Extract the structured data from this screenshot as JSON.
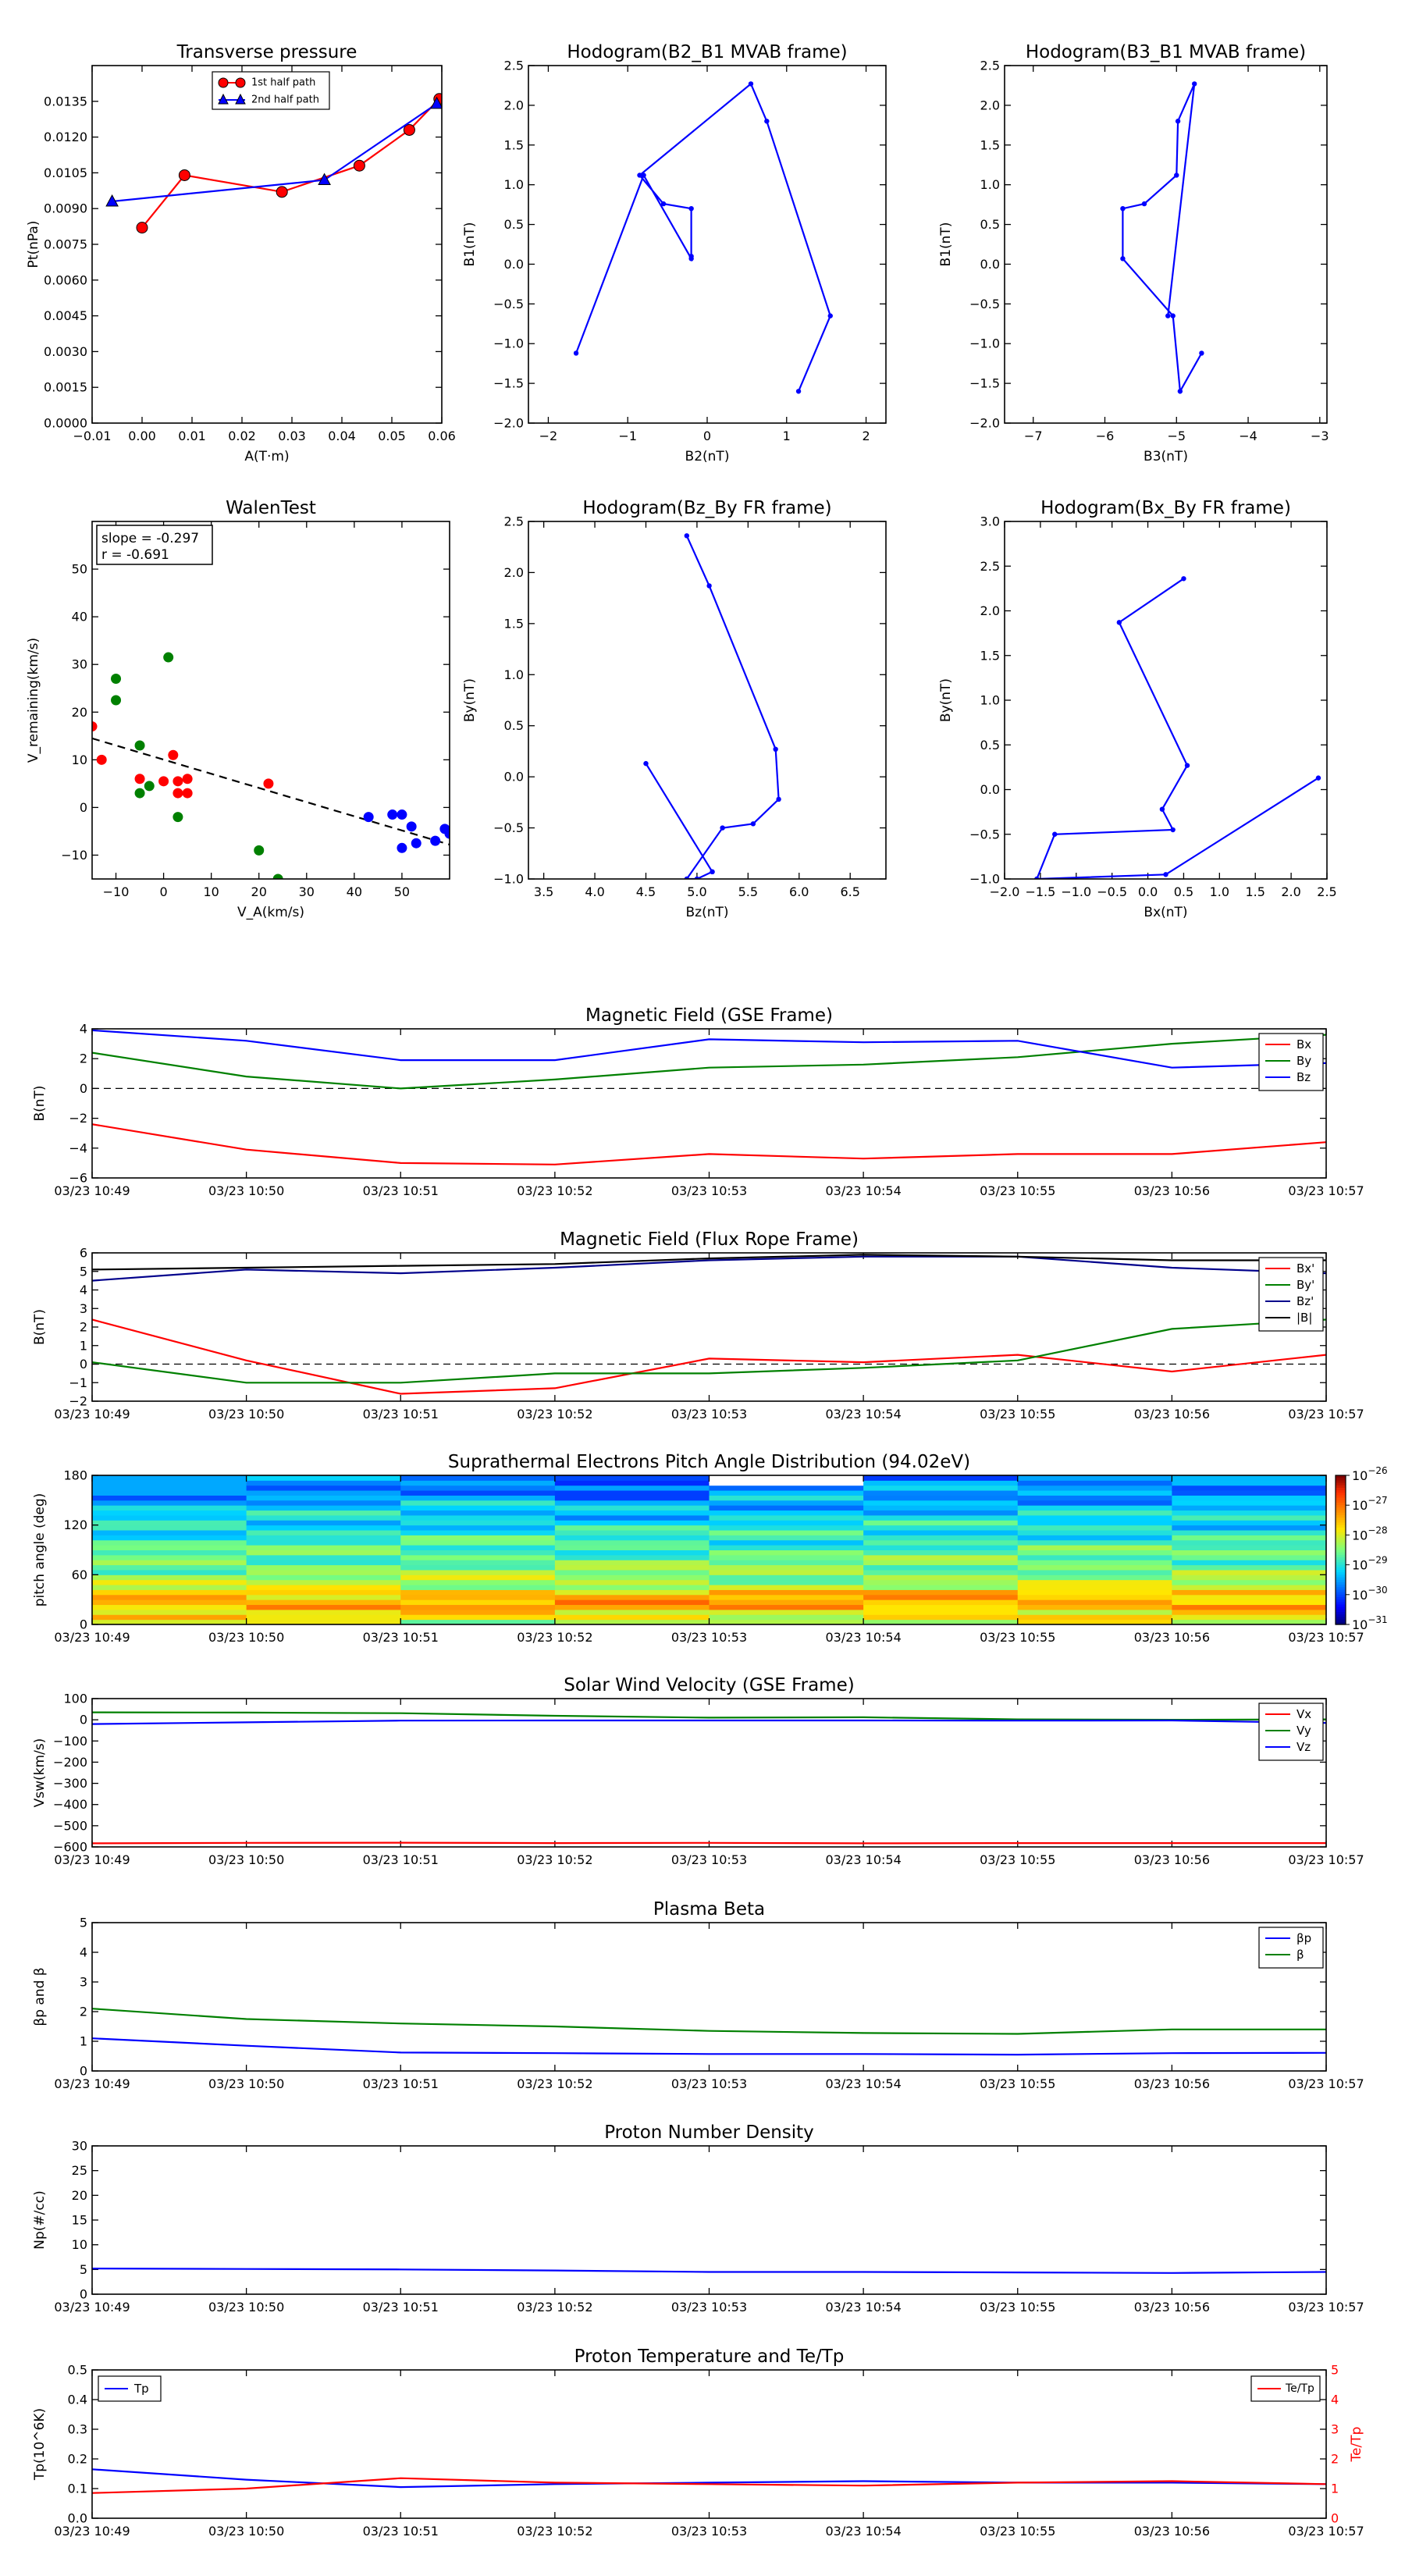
{
  "chart_data": [
    {
      "id": "tp",
      "type": "scatter",
      "title": "Transverse pressure",
      "xlabel": "A(T·m)",
      "ylabel": "Pt(nPa)",
      "xlim": [
        -0.01,
        0.06
      ],
      "ylim": [
        0.0,
        0.015
      ],
      "xticks": [
        "−0.01",
        "0.00",
        "0.01",
        "0.02",
        "0.03",
        "0.04",
        "0.05",
        "0.06"
      ],
      "xtick_values": [
        -0.01,
        0.0,
        0.01,
        0.02,
        0.03,
        0.04,
        0.05,
        0.06
      ],
      "yticks": [
        "0.0000",
        "0.0015",
        "0.0030",
        "0.0045",
        "0.0060",
        "0.0075",
        "0.0090",
        "0.0105",
        "0.0120",
        "0.0135"
      ],
      "ytick_values": [
        0.0,
        0.0015,
        0.003,
        0.0045,
        0.006,
        0.0075,
        0.009,
        0.0105,
        0.012,
        0.0135
      ],
      "legend_position": "top-center",
      "series": [
        {
          "name": "1st half path",
          "color": "#ff0000",
          "marker": "circle",
          "x": [
            0.0,
            0.0085,
            0.028,
            0.0435,
            0.0535,
            0.0595
          ],
          "y": [
            0.0082,
            0.0104,
            0.0097,
            0.0108,
            0.0123,
            0.0136
          ]
        },
        {
          "name": "2nd half path",
          "color": "#0000ff",
          "marker": "triangle",
          "x": [
            -0.006,
            0.0365,
            0.059
          ],
          "y": [
            0.0093,
            0.0102,
            0.0134
          ]
        }
      ]
    },
    {
      "id": "h1",
      "type": "line",
      "title": "Hodogram(B2_B1 MVAB frame)",
      "xlabel": "B2(nT)",
      "ylabel": "B1(nT)",
      "xlim": [
        -2.25,
        2.25
      ],
      "ylim": [
        -2.0,
        2.5
      ],
      "xticks": [
        "−2",
        "−1",
        "0",
        "1",
        "2"
      ],
      "xtick_values": [
        -2,
        -1,
        0,
        1,
        2
      ],
      "yticks": [
        "−2.0",
        "−1.5",
        "−1.0",
        "−0.5",
        "0.0",
        "0.5",
        "1.0",
        "1.5",
        "2.0",
        "2.5"
      ],
      "ytick_values": [
        -2.0,
        -1.5,
        -1.0,
        -0.5,
        0.0,
        0.5,
        1.0,
        1.5,
        2.0,
        2.5
      ],
      "series": [
        {
          "name": "",
          "color": "#0000ff",
          "x": [
            -1.65,
            -0.8,
            -0.2,
            -0.2,
            -0.2,
            -0.55,
            -0.85,
            0.55,
            0.75,
            1.55,
            1.15
          ],
          "y": [
            -1.12,
            1.12,
            0.07,
            0.1,
            0.7,
            0.76,
            1.12,
            2.27,
            1.8,
            -0.65,
            -1.6
          ]
        }
      ]
    },
    {
      "id": "h2",
      "type": "line",
      "title": "Hodogram(B3_B1 MVAB frame)",
      "xlabel": "B3(nT)",
      "ylabel": "B1(nT)",
      "xlim": [
        -7.4,
        -2.9
      ],
      "ylim": [
        -2.0,
        2.5
      ],
      "xticks": [
        "−7",
        "−6",
        "−5",
        "−4",
        "−3"
      ],
      "xtick_values": [
        -7,
        -6,
        -5,
        -4,
        -3
      ],
      "yticks": [
        "−2.0",
        "−1.5",
        "−1.0",
        "−0.5",
        "0.0",
        "0.5",
        "1.0",
        "1.5",
        "2.0",
        "2.5"
      ],
      "ytick_values": [
        -2.0,
        -1.5,
        -1.0,
        -0.5,
        0.0,
        0.5,
        1.0,
        1.5,
        2.0,
        2.5
      ],
      "series": [
        {
          "name": "",
          "color": "#0000ff",
          "x": [
            -4.65,
            -4.95,
            -5.05,
            -5.75,
            -5.75,
            -5.45,
            -5.0,
            -4.98,
            -4.75,
            -5.12
          ],
          "y": [
            -1.12,
            -1.6,
            -0.65,
            0.07,
            0.7,
            0.76,
            1.12,
            1.8,
            2.27,
            -0.65
          ]
        }
      ]
    },
    {
      "id": "walen",
      "type": "scatter",
      "title": "WalenTest",
      "xlabel": "V_A(km/s)",
      "ylabel": "V_remaining(km/s)",
      "xlim": [
        -15,
        60
      ],
      "ylim": [
        -15,
        60
      ],
      "xticks": [
        "−10",
        "0",
        "10",
        "20",
        "30",
        "40",
        "50"
      ],
      "xtick_values": [
        -10,
        0,
        10,
        20,
        30,
        40,
        50
      ],
      "yticks": [
        "−10",
        "0",
        "10",
        "20",
        "30",
        "40",
        "50"
      ],
      "ytick_values": [
        -10,
        0,
        10,
        20,
        30,
        40,
        50
      ],
      "annotation": [
        "slope = -0.297",
        "r = -0.691"
      ],
      "fit_line": {
        "x": [
          -15,
          60
        ],
        "y": [
          14.5,
          -7.8
        ],
        "color": "#000000",
        "style": "dashed"
      },
      "series": [
        {
          "name": "",
          "color": "#ff0000",
          "x": [
            -15,
            -13,
            -5,
            0,
            2,
            3,
            3,
            5,
            5,
            22
          ],
          "y": [
            17,
            10,
            6,
            5.5,
            11,
            5.5,
            3,
            6,
            3,
            5
          ]
        },
        {
          "name": "",
          "color": "#008000",
          "x": [
            -10,
            -10,
            -5,
            -5,
            -3,
            1,
            3,
            20,
            24
          ],
          "y": [
            27,
            22.5,
            13,
            3,
            4.5,
            31.5,
            -2,
            -9,
            -15
          ]
        },
        {
          "name": "",
          "color": "#0000ff",
          "x": [
            43,
            48,
            50,
            50,
            52,
            53,
            57,
            59,
            60
          ],
          "y": [
            -2,
            -1.5,
            -1.5,
            -8.5,
            -4,
            -7.5,
            -7,
            -4.5,
            -5.5
          ]
        }
      ]
    },
    {
      "id": "h3",
      "type": "line",
      "title": "Hodogram(Bz_By FR frame)",
      "xlabel": "Bz(nT)",
      "ylabel": "By(nT)",
      "xlim": [
        3.35,
        6.85
      ],
      "ylim": [
        -1.0,
        2.5
      ],
      "xticks": [
        "3.5",
        "4.0",
        "4.5",
        "5.0",
        "5.5",
        "6.0",
        "6.5"
      ],
      "xtick_values": [
        3.5,
        4.0,
        4.5,
        5.0,
        5.5,
        6.0,
        6.5
      ],
      "yticks": [
        "−1.0",
        "−0.5",
        "0.0",
        "0.5",
        "1.0",
        "1.5",
        "2.0",
        "2.5"
      ],
      "ytick_values": [
        -1.0,
        -0.5,
        0.0,
        0.5,
        1.0,
        1.5,
        2.0,
        2.5
      ],
      "series": [
        {
          "name": "",
          "color": "#0000ff",
          "x": [
            5.15,
            5.0,
            4.9,
            5.25,
            5.55,
            5.8,
            5.77,
            5.12,
            4.9
          ],
          "y": [
            -0.93,
            -1.0,
            -1.0,
            -0.5,
            -0.46,
            -0.22,
            0.27,
            1.87,
            2.36
          ]
        }
      ],
      "extra_series": [
        {
          "name": "",
          "color": "#0000ff",
          "x": [
            4.5,
            5.15
          ],
          "y": [
            0.13,
            -0.93
          ]
        }
      ]
    },
    {
      "id": "h4",
      "type": "line",
      "title": "Hodogram(Bx_By FR frame)",
      "xlabel": "Bx(nT)",
      "ylabel": "By(nT)",
      "xlim": [
        -2.0,
        2.5
      ],
      "ylim": [
        -1.0,
        3.0
      ],
      "xticks": [
        "−2.0",
        "−1.5",
        "−1.0",
        "−0.5",
        "0.0",
        "0.5",
        "1.0",
        "1.5",
        "2.0",
        "2.5"
      ],
      "xtick_values": [
        -2.0,
        -1.5,
        -1.0,
        -0.5,
        0.0,
        0.5,
        1.0,
        1.5,
        2.0,
        2.5
      ],
      "yticks": [
        "−1.0",
        "−0.5",
        "0.0",
        "0.5",
        "1.0",
        "1.5",
        "2.0",
        "2.5",
        "3.0"
      ],
      "ytick_values": [
        -1.0,
        -0.5,
        0.0,
        0.5,
        1.0,
        1.5,
        2.0,
        2.5,
        3.0
      ],
      "series": [
        {
          "name": "",
          "color": "#0000ff",
          "x": [
            2.38,
            0.25,
            -1.55,
            -1.3,
            0.35,
            0.2,
            0.55,
            -0.4,
            0.5
          ],
          "y": [
            0.13,
            -0.95,
            -1.0,
            -0.5,
            -0.45,
            -0.22,
            0.27,
            1.87,
            2.36
          ]
        }
      ]
    },
    {
      "id": "ts_mag",
      "type": "line",
      "title": "Magnetic Field (GSE Frame)",
      "ylabel": "B(nT)",
      "ylim": [
        -6,
        4
      ],
      "yticks": [
        "−6",
        "−4",
        "−2",
        "0",
        "2",
        "4"
      ],
      "ytick_values": [
        -6,
        -4,
        -2,
        0,
        2,
        4
      ],
      "zero_line": true,
      "legend_position": "right",
      "series": [
        {
          "name": "Bx",
          "color": "#ff0000",
          "values": [
            -2.4,
            -4.1,
            -5.0,
            -5.1,
            -4.4,
            -4.7,
            -4.4,
            -4.4,
            -3.6
          ]
        },
        {
          "name": "By",
          "color": "#008000",
          "values": [
            2.4,
            0.8,
            0.0,
            0.6,
            1.4,
            1.6,
            2.1,
            3.0,
            3.6
          ]
        },
        {
          "name": "Bz",
          "color": "#0000ff",
          "values": [
            3.9,
            3.2,
            1.9,
            1.9,
            3.3,
            3.1,
            3.2,
            1.4,
            1.7
          ]
        }
      ]
    },
    {
      "id": "ts_fr",
      "type": "line",
      "title": "Magnetic Field (Flux Rope Frame)",
      "ylabel": "B(nT)",
      "ylim": [
        -2,
        6
      ],
      "yticks": [
        "−2",
        "−1",
        "0",
        "1",
        "2",
        "3",
        "4",
        "5",
        "6"
      ],
      "ytick_values": [
        -2,
        -1,
        0,
        1,
        2,
        3,
        4,
        5,
        6
      ],
      "zero_line": true,
      "legend_position": "right",
      "series": [
        {
          "name": "Bx'",
          "color": "#ff0000",
          "values": [
            2.4,
            0.2,
            -1.6,
            -1.3,
            0.3,
            0.1,
            0.5,
            -0.4,
            0.5
          ]
        },
        {
          "name": "By'",
          "color": "#008000",
          "values": [
            0.1,
            -1.0,
            -1.0,
            -0.5,
            -0.5,
            -0.2,
            0.2,
            1.9,
            2.4
          ]
        },
        {
          "name": "Bz'",
          "color": "#00008b",
          "values": [
            4.5,
            5.1,
            4.9,
            5.2,
            5.6,
            5.8,
            5.8,
            5.2,
            4.9
          ]
        },
        {
          "name": "|B|",
          "color": "#000000",
          "values": [
            5.1,
            5.2,
            5.3,
            5.4,
            5.7,
            5.9,
            5.8,
            5.6,
            5.6
          ]
        }
      ]
    },
    {
      "id": "ts_pad",
      "type": "heatmap",
      "title": "Suprathermal Electrons Pitch Angle Distribution (94.02eV)",
      "ylabel": "pitch angle (deg)",
      "ylim": [
        0,
        180
      ],
      "yticks": [
        "0",
        "60",
        "120",
        "180"
      ],
      "ytick_values": [
        0,
        60,
        120,
        180
      ],
      "colorbar_labels": [
        "10^-26",
        "10^-27",
        "10^-28",
        "10^-29",
        "10^-30",
        "10^-31"
      ],
      "colorbar_exponents": [
        -26,
        -27,
        -28,
        -29,
        -30,
        -31
      ]
    },
    {
      "id": "ts_vel",
      "type": "line",
      "title": "Solar Wind Velocity (GSE Frame)",
      "ylabel": "Vsw(km/s)",
      "ylim": [
        -600,
        100
      ],
      "yticks": [
        "−600",
        "−500",
        "−400",
        "−300",
        "−200",
        "−100",
        "0",
        "100"
      ],
      "ytick_values": [
        -600,
        -500,
        -400,
        -300,
        -200,
        -100,
        0,
        100
      ],
      "legend_position": "right",
      "series": [
        {
          "name": "Vx",
          "color": "#ff0000",
          "values": [
            -583,
            -581,
            -580,
            -582,
            -581,
            -583,
            -582,
            -582,
            -582
          ]
        },
        {
          "name": "Vy",
          "color": "#008000",
          "values": [
            35,
            34,
            31,
            19,
            10,
            12,
            2,
            0,
            2
          ]
        },
        {
          "name": "Vz",
          "color": "#0000ff",
          "values": [
            -20,
            -12,
            -4,
            -3,
            -3,
            -3,
            -4,
            -3,
            -15
          ]
        }
      ]
    },
    {
      "id": "ts_beta",
      "type": "line",
      "title": "Plasma Beta",
      "ylabel": "βp and β",
      "ylim": [
        0,
        5
      ],
      "yticks": [
        "0",
        "1",
        "2",
        "3",
        "4",
        "5"
      ],
      "ytick_values": [
        0,
        1,
        2,
        3,
        4,
        5
      ],
      "legend_position": "right",
      "series": [
        {
          "name": "βp",
          "color": "#0000ff",
          "values": [
            1.1,
            0.85,
            0.62,
            0.6,
            0.57,
            0.57,
            0.55,
            0.6,
            0.61
          ]
        },
        {
          "name": "β",
          "color": "#008000",
          "values": [
            2.1,
            1.75,
            1.6,
            1.5,
            1.35,
            1.28,
            1.25,
            1.4,
            1.4
          ]
        }
      ]
    },
    {
      "id": "ts_np",
      "type": "line",
      "title": "Proton Number Density",
      "ylabel": "Np(#/cc)",
      "ylim": [
        0,
        30
      ],
      "yticks": [
        "0",
        "5",
        "10",
        "15",
        "20",
        "25",
        "30"
      ],
      "ytick_values": [
        0,
        5,
        10,
        15,
        20,
        25,
        30
      ],
      "series": [
        {
          "name": "",
          "color": "#0000ff",
          "values": [
            5.2,
            5.1,
            5.0,
            4.8,
            4.5,
            4.5,
            4.4,
            4.3,
            4.5
          ]
        }
      ]
    },
    {
      "id": "ts_tp",
      "type": "line",
      "title": "Proton Temperature and Te/Tp",
      "ylabel": "Tp(10^6K)",
      "ylabel_right": "Te/Tp",
      "ylim": [
        0,
        0.5
      ],
      "ylim_right": [
        0,
        5
      ],
      "yticks": [
        "0.0",
        "0.1",
        "0.2",
        "0.3",
        "0.4",
        "0.5"
      ],
      "ytick_values": [
        0.0,
        0.1,
        0.2,
        0.3,
        0.4,
        0.5
      ],
      "yticks_right": [
        "0",
        "1",
        "2",
        "3",
        "4",
        "5"
      ],
      "ytick_values_right": [
        0,
        1,
        2,
        3,
        4,
        5
      ],
      "series": [
        {
          "name": "Tp",
          "color": "#0000ff",
          "values": [
            0.165,
            0.13,
            0.105,
            0.115,
            0.12,
            0.125,
            0.12,
            0.12,
            0.115
          ],
          "axis": "left"
        },
        {
          "name": "Te/Tp",
          "color": "#ff0000",
          "values": [
            0.85,
            1.0,
            1.35,
            1.2,
            1.15,
            1.1,
            1.2,
            1.25,
            1.15
          ],
          "axis": "right"
        }
      ]
    }
  ],
  "time_axis": {
    "labels": [
      "03/23 10:49",
      "03/23 10:50",
      "03/23 10:51",
      "03/23 10:52",
      "03/23 10:53",
      "03/23 10:54",
      "03/23 10:55",
      "03/23 10:56",
      "03/23 10:57"
    ]
  }
}
